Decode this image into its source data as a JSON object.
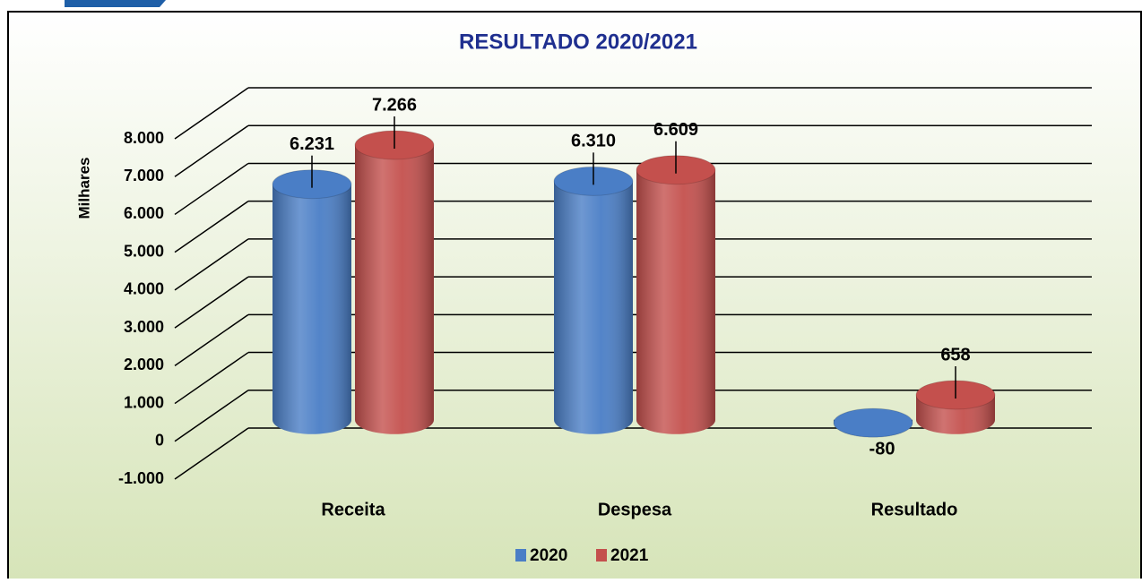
{
  "chart_data": {
    "type": "bar3d",
    "title": "RESULTADO 2020/2021",
    "y_label": "Milhares",
    "categories": [
      "Receita",
      "Despesa",
      "Resultado"
    ],
    "series": [
      {
        "name": "2020",
        "color": "#4a7ec6",
        "values": [
          6231,
          6310,
          -80
        ],
        "value_labels": [
          "6.231",
          "6.310",
          "-80"
        ]
      },
      {
        "name": "2021",
        "color": "#c4504d",
        "values": [
          7266,
          6609,
          658
        ],
        "value_labels": [
          "7.266",
          "6.609",
          "658"
        ]
      }
    ],
    "ylim": [
      -1000,
      8000
    ],
    "yticks": [
      {
        "value": -1000,
        "label": "-1.000"
      },
      0,
      {
        "value": 1000,
        "label": "1.000"
      },
      {
        "value": 2000,
        "label": "2.000"
      },
      {
        "value": 3000,
        "label": "3.000"
      },
      {
        "value": 4000,
        "label": "4.000"
      },
      {
        "value": 5000,
        "label": "5.000"
      },
      {
        "value": 6000,
        "label": "6.000"
      },
      {
        "value": 7000,
        "label": "7.000"
      },
      {
        "value": 8000,
        "label": "8.000"
      }
    ],
    "grid": true,
    "legend": "bottom"
  }
}
